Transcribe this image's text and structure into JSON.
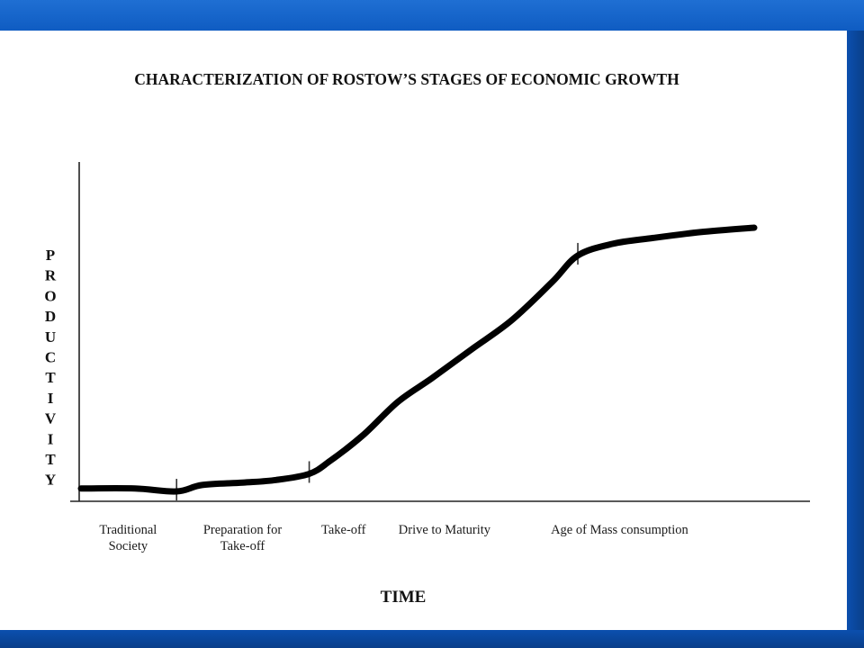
{
  "slide": {
    "background": "#ffffff",
    "frame_color": "#0a4fb0"
  },
  "chart_data": {
    "type": "line",
    "title": "CHARACTERIZATION OF ROSTOW’S STAGES OF ECONOMIC GROWTH",
    "xlabel": "TIME",
    "ylabel": "PRODUCTIVITY",
    "grid": false,
    "legend": "none",
    "xlim": [
      0,
      100
    ],
    "ylim": [
      0,
      100
    ],
    "categories": [
      [
        "Traditional",
        "Society"
      ],
      [
        "Preparation for",
        "Take-off"
      ],
      [
        "Take-off"
      ],
      [
        "Drive to Maturity"
      ],
      [
        "Age of  Mass consumption"
      ]
    ],
    "category_positions": [
      7,
      24,
      39,
      54,
      80
    ],
    "stage_boundaries": [
      14.2,
      33.9,
      73.8
    ],
    "series": [
      {
        "color": "#000000",
        "x": [
          0,
          8,
          14.2,
          18,
          24,
          29,
          33.9,
          37,
          42,
          47,
          52,
          58,
          64,
          70,
          73.8,
          79,
          85,
          92,
          100
        ],
        "y": [
          1.6,
          1.6,
          0.6,
          2.8,
          3.6,
          4.5,
          6.6,
          11,
          20,
          31,
          39,
          49,
          59,
          72,
          81,
          85,
          87,
          89,
          90.5
        ]
      }
    ]
  }
}
